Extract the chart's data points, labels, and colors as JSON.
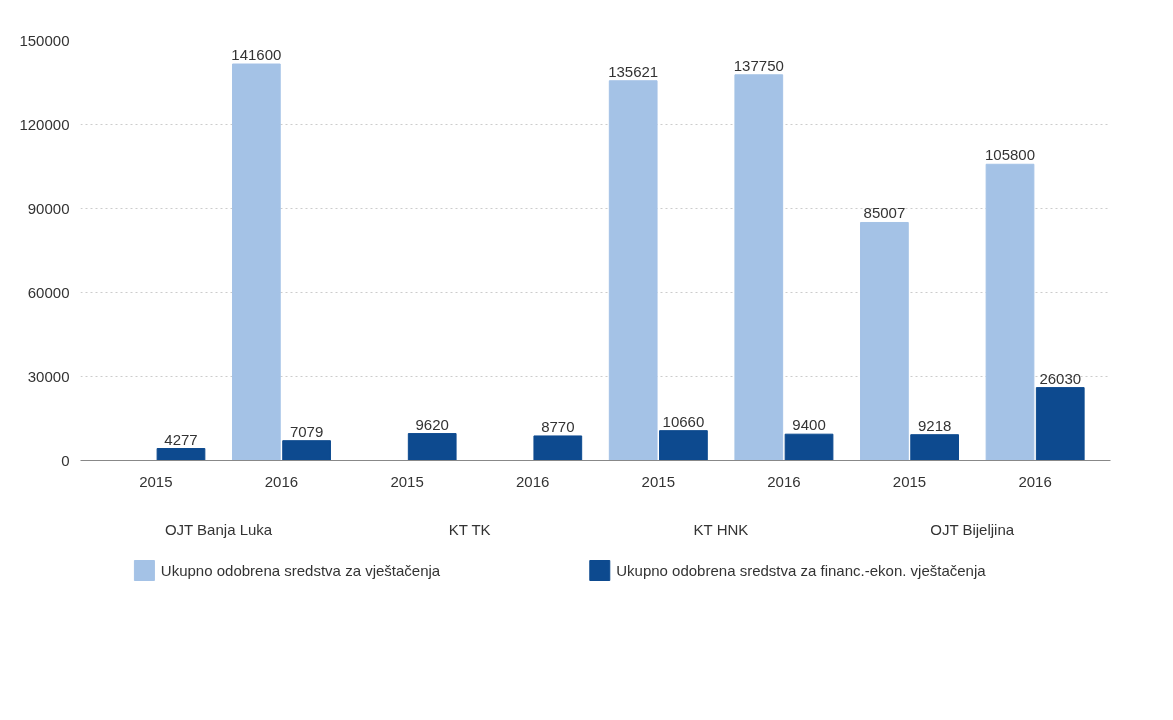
{
  "chart_data": {
    "type": "bar",
    "categories": [
      "2015",
      "2016",
      "2015",
      "2016",
      "2015",
      "2016",
      "2015",
      "2016"
    ],
    "series": [
      {
        "name": "Ukupno odobrena sredstva za vještačenja",
        "color": "#a4c2e6",
        "values": [
          null,
          141600,
          null,
          null,
          135621,
          137750,
          85007,
          105800
        ]
      },
      {
        "name": "Ukupno odobrena sredstva za financ.-ekon. vještačenja",
        "color": "#0d4a8f",
        "values": [
          4277,
          7079,
          9620,
          8770,
          10660,
          9400,
          9218,
          26030
        ]
      }
    ],
    "annotations": [
      "OJT Banja Luka",
      "KT TK",
      "KT HNK",
      "OJT Bijeljina"
    ],
    "ylim": [
      0,
      150000
    ],
    "yticks": [
      0,
      30000,
      60000,
      90000,
      120000,
      150000
    ],
    "grid": "y",
    "legend": "bottom",
    "data_labels": true
  }
}
